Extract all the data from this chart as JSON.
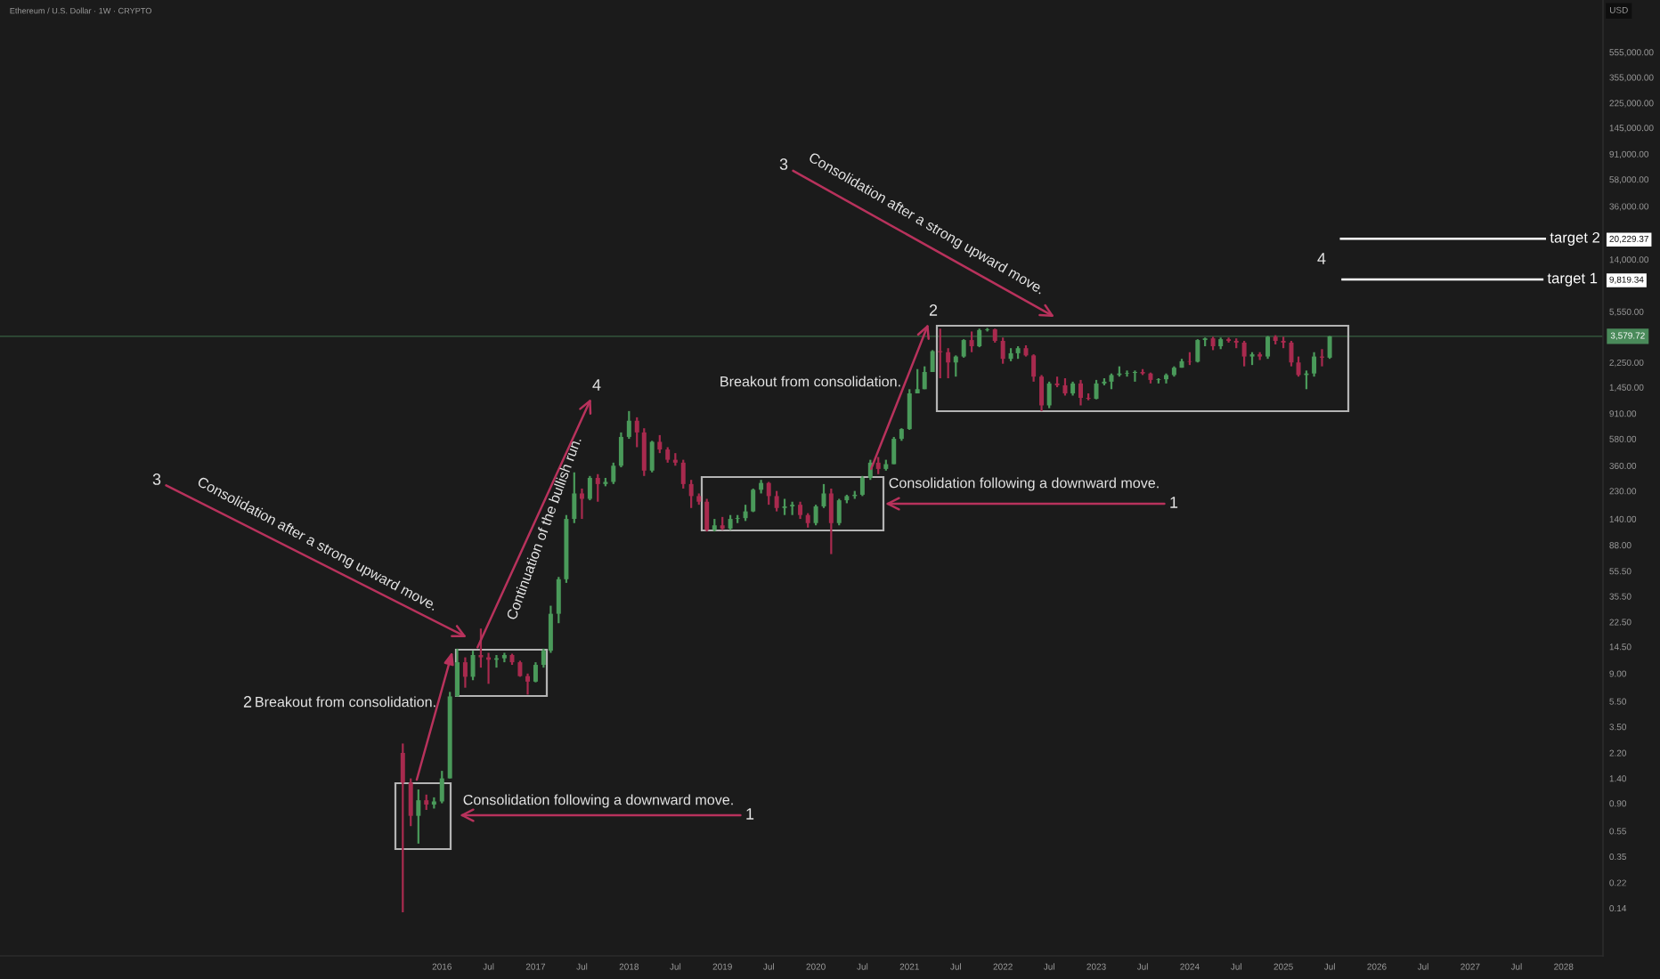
{
  "chart_data": {
    "type": "candlestick",
    "title": "Ethereum / U.S. Dollar · 1W · CRYPTO",
    "ylabel": "USD",
    "log": "y",
    "legend": "right",
    "x": [
      "2015-08",
      "2015-09",
      "2015-10",
      "2015-11",
      "2015-12",
      "2016-01",
      "2016-02",
      "2016-03",
      "2016-04",
      "2016-05",
      "2016-06",
      "2016-07",
      "2016-08",
      "2016-09",
      "2016-10",
      "2016-11",
      "2016-12",
      "2017-01",
      "2017-02",
      "2017-03",
      "2017-04",
      "2017-05",
      "2017-06",
      "2017-07",
      "2017-08",
      "2017-09",
      "2017-10",
      "2017-11",
      "2017-12",
      "2018-01",
      "2018-02",
      "2018-03",
      "2018-04",
      "2018-05",
      "2018-06",
      "2018-07",
      "2018-08",
      "2018-09",
      "2018-10",
      "2018-11",
      "2018-12",
      "2019-01",
      "2019-02",
      "2019-03",
      "2019-04",
      "2019-05",
      "2019-06",
      "2019-07",
      "2019-08",
      "2019-09",
      "2019-10",
      "2019-11",
      "2019-12",
      "2020-01",
      "2020-02",
      "2020-03",
      "2020-04",
      "2020-05",
      "2020-06",
      "2020-07",
      "2020-08",
      "2020-09",
      "2020-10",
      "2020-11",
      "2020-12",
      "2021-01",
      "2021-02",
      "2021-03",
      "2021-04",
      "2021-05",
      "2021-06",
      "2021-07",
      "2021-08",
      "2021-09",
      "2021-10",
      "2021-11",
      "2021-12",
      "2022-01",
      "2022-02",
      "2022-03",
      "2022-04",
      "2022-05",
      "2022-06",
      "2022-07",
      "2022-08",
      "2022-09",
      "2022-10",
      "2022-11",
      "2022-12",
      "2023-01",
      "2023-02",
      "2023-03",
      "2023-04",
      "2023-05",
      "2023-06",
      "2023-07",
      "2023-08",
      "2023-09",
      "2023-10",
      "2023-11",
      "2023-12",
      "2024-01",
      "2024-02",
      "2024-03",
      "2024-04",
      "2024-05",
      "2024-06",
      "2024-07",
      "2024-08",
      "2024-09",
      "2024-10",
      "2024-11",
      "2024-12",
      "2025-01",
      "2025-02",
      "2025-03",
      "2025-04",
      "2025-05",
      "2025-06",
      "2025-07"
    ],
    "ohlc": [
      [
        2.2,
        2.6,
        0.13,
        1.3
      ],
      [
        1.3,
        1.4,
        0.6,
        0.72
      ],
      [
        0.72,
        1.15,
        0.44,
        0.95
      ],
      [
        0.95,
        1.05,
        0.8,
        0.88
      ],
      [
        0.88,
        1.0,
        0.82,
        0.93
      ],
      [
        0.93,
        1.6,
        0.9,
        1.4
      ],
      [
        1.4,
        6.5,
        1.4,
        6.0
      ],
      [
        6.0,
        14,
        6.0,
        11
      ],
      [
        11,
        12,
        7,
        8.5
      ],
      [
        8.5,
        13.5,
        8,
        12.5
      ],
      [
        12.5,
        20,
        10,
        12
      ],
      [
        12,
        13,
        7.5,
        11.5
      ],
      [
        11.5,
        12.5,
        10,
        11.8
      ],
      [
        11.8,
        13,
        11,
        12.5
      ],
      [
        12.5,
        12.8,
        10.5,
        11
      ],
      [
        11,
        11.3,
        8.5,
        8.6
      ],
      [
        8.6,
        9,
        6.2,
        7.8
      ],
      [
        7.8,
        11,
        7.7,
        10.5
      ],
      [
        10.5,
        14,
        10,
        13.5
      ],
      [
        13.5,
        30,
        13,
        26
      ],
      [
        26,
        50,
        22,
        48
      ],
      [
        48,
        150,
        45,
        140
      ],
      [
        140,
        320,
        130,
        220
      ],
      [
        220,
        240,
        140,
        200
      ],
      [
        200,
        300,
        195,
        290
      ],
      [
        290,
        310,
        190,
        260
      ],
      [
        260,
        290,
        250,
        270
      ],
      [
        270,
        380,
        260,
        360
      ],
      [
        360,
        650,
        350,
        600
      ],
      [
        600,
        950,
        580,
        800
      ],
      [
        800,
        850,
        500,
        650
      ],
      [
        650,
        700,
        300,
        330
      ],
      [
        330,
        560,
        320,
        550
      ],
      [
        550,
        620,
        450,
        480
      ],
      [
        480,
        500,
        380,
        400
      ],
      [
        400,
        450,
        360,
        380
      ],
      [
        380,
        400,
        240,
        260
      ],
      [
        260,
        280,
        170,
        210
      ],
      [
        210,
        220,
        180,
        190
      ],
      [
        190,
        200,
        112,
        115
      ],
      [
        115,
        140,
        112,
        125
      ],
      [
        125,
        145,
        115,
        118
      ],
      [
        118,
        150,
        115,
        140
      ],
      [
        140,
        150,
        130,
        142
      ],
      [
        142,
        180,
        135,
        160
      ],
      [
        160,
        240,
        158,
        235
      ],
      [
        235,
        280,
        220,
        265
      ],
      [
        265,
        270,
        180,
        210
      ],
      [
        210,
        230,
        160,
        170
      ],
      [
        170,
        200,
        150,
        175
      ],
      [
        175,
        190,
        150,
        180
      ],
      [
        180,
        190,
        140,
        150
      ],
      [
        150,
        155,
        120,
        130
      ],
      [
        130,
        180,
        125,
        175
      ],
      [
        175,
        260,
        170,
        220
      ],
      [
        220,
        240,
        75,
        130
      ],
      [
        130,
        200,
        125,
        195
      ],
      [
        195,
        215,
        185,
        210
      ],
      [
        210,
        230,
        200,
        215
      ],
      [
        215,
        300,
        210,
        290
      ],
      [
        290,
        400,
        280,
        380
      ],
      [
        380,
        420,
        310,
        340
      ],
      [
        340,
        400,
        330,
        370
      ],
      [
        370,
        600,
        370,
        580
      ],
      [
        580,
        700,
        560,
        690
      ],
      [
        690,
        1400,
        680,
        1300
      ],
      [
        1300,
        2000,
        1300,
        1400
      ],
      [
        1400,
        2100,
        1400,
        1900
      ],
      [
        1900,
        2800,
        1900,
        2750
      ],
      [
        2750,
        4100,
        1700,
        2700
      ],
      [
        2700,
        2900,
        1700,
        2250
      ],
      [
        2250,
        2550,
        1750,
        2500
      ],
      [
        2500,
        3400,
        2450,
        3350
      ],
      [
        3350,
        3900,
        2700,
        3000
      ],
      [
        3000,
        4100,
        2950,
        4000
      ],
      [
        4000,
        4150,
        3900,
        4050
      ],
      [
        4050,
        4100,
        3200,
        3300
      ],
      [
        3300,
        3500,
        2200,
        2400
      ],
      [
        2400,
        2900,
        2300,
        2650
      ],
      [
        2650,
        3000,
        2400,
        2900
      ],
      [
        2900,
        3050,
        2500,
        2550
      ],
      [
        2550,
        2600,
        1600,
        1750
      ],
      [
        1750,
        1800,
        950,
        1050
      ],
      [
        1050,
        1600,
        1000,
        1550
      ],
      [
        1550,
        1750,
        1450,
        1500
      ],
      [
        1500,
        1700,
        1250,
        1300
      ],
      [
        1300,
        1600,
        1250,
        1550
      ],
      [
        1550,
        1650,
        1050,
        1200
      ],
      [
        1200,
        1300,
        1150,
        1180
      ],
      [
        1180,
        1650,
        1170,
        1550
      ],
      [
        1550,
        1700,
        1500,
        1600
      ],
      [
        1600,
        1850,
        1400,
        1800
      ],
      [
        1800,
        2100,
        1750,
        1850
      ],
      [
        1850,
        1950,
        1750,
        1870
      ],
      [
        1870,
        1950,
        1600,
        1900
      ],
      [
        1900,
        2000,
        1800,
        1850
      ],
      [
        1850,
        1880,
        1550,
        1650
      ],
      [
        1650,
        1700,
        1550,
        1670
      ],
      [
        1670,
        1850,
        1550,
        1800
      ],
      [
        1800,
        2100,
        1750,
        2050
      ],
      [
        2050,
        2400,
        2050,
        2300
      ],
      [
        2300,
        2700,
        2150,
        2280
      ],
      [
        2280,
        3400,
        2250,
        3350
      ],
      [
        3350,
        3500,
        3000,
        3450
      ],
      [
        3450,
        3550,
        2800,
        3000
      ],
      [
        3000,
        3500,
        2850,
        3400
      ],
      [
        3400,
        3500,
        3200,
        3300
      ],
      [
        3300,
        3450,
        2900,
        3200
      ],
      [
        3200,
        3300,
        2100,
        2500
      ],
      [
        2500,
        2700,
        2150,
        2600
      ],
      [
        2600,
        2700,
        2350,
        2500
      ],
      [
        2500,
        3600,
        2400,
        3550
      ],
      [
        3550,
        3650,
        3100,
        3300
      ],
      [
        3300,
        3550,
        2900,
        3200
      ],
      [
        3200,
        3300,
        2100,
        2250
      ],
      [
        2250,
        2500,
        1750,
        1800
      ],
      [
        1800,
        1950,
        1400,
        1850
      ],
      [
        1850,
        2700,
        1750,
        2500
      ],
      [
        2500,
        2850,
        2100,
        2450
      ],
      [
        2450,
        3600,
        2400,
        3579.72
      ]
    ],
    "colors": [
      "#a82a4e",
      "#a82a4e",
      "#4a9a5a",
      "#a82a4e",
      "#4a9a5a",
      "#4a9a5a",
      "#4a9a5a",
      "#4a9a5a",
      "#a82a4e",
      "#4a9a5a",
      "#a82a4e",
      "#a82a4e",
      "#4a9a5a",
      "#4a9a5a",
      "#a82a4e",
      "#a82a4e",
      "#a82a4e",
      "#4a9a5a",
      "#4a9a5a",
      "#4a9a5a",
      "#4a9a5a",
      "#4a9a5a",
      "#4a9a5a",
      "#a82a4e",
      "#4a9a5a",
      "#a82a4e",
      "#4a9a5a",
      "#4a9a5a",
      "#4a9a5a",
      "#4a9a5a",
      "#a82a4e",
      "#a82a4e",
      "#4a9a5a",
      "#a82a4e",
      "#a82a4e",
      "#a82a4e",
      "#a82a4e",
      "#a82a4e",
      "#a82a4e",
      "#a82a4e",
      "#4a9a5a",
      "#a82a4e",
      "#4a9a5a",
      "#4a9a5a",
      "#4a9a5a",
      "#4a9a5a",
      "#4a9a5a",
      "#a82a4e",
      "#a82a4e",
      "#4a9a5a",
      "#4a9a5a",
      "#a82a4e",
      "#a82a4e",
      "#4a9a5a",
      "#4a9a5a",
      "#a82a4e",
      "#4a9a5a",
      "#4a9a5a",
      "#4a9a5a",
      "#4a9a5a",
      "#4a9a5a",
      "#a82a4e",
      "#4a9a5a",
      "#4a9a5a",
      "#4a9a5a",
      "#4a9a5a",
      "#4a9a5a",
      "#4a9a5a",
      "#4a9a5a",
      "#a82a4e",
      "#a82a4e",
      "#4a9a5a",
      "#4a9a5a",
      "#a82a4e",
      "#4a9a5a",
      "#4a9a5a",
      "#a82a4e",
      "#a82a4e",
      "#4a9a5a",
      "#4a9a5a",
      "#a82a4e",
      "#a82a4e",
      "#a82a4e",
      "#4a9a5a",
      "#a82a4e",
      "#a82a4e",
      "#4a9a5a",
      "#a82a4e",
      "#a82a4e",
      "#4a9a5a",
      "#4a9a5a",
      "#4a9a5a",
      "#4a9a5a",
      "#4a9a5a",
      "#4a9a5a",
      "#a82a4e",
      "#a82a4e",
      "#4a9a5a",
      "#4a9a5a",
      "#4a9a5a",
      "#4a9a5a",
      "#a82a4e",
      "#4a9a5a",
      "#4a9a5a",
      "#a82a4e",
      "#4a9a5a",
      "#a82a4e",
      "#a82a4e",
      "#a82a4e",
      "#4a9a5a",
      "#a82a4e",
      "#4a9a5a",
      "#a82a4e",
      "#a82a4e",
      "#a82a4e",
      "#a82a4e",
      "#4a9a5a",
      "#4a9a5a",
      "#a82a4e",
      "#4a9a5a"
    ],
    "series": [
      {
        "type": "line",
        "name": "target 2",
        "color": "#ffffff",
        "x": [
          "2025-08-14",
          "2027-10-20"
        ],
        "values": [
          20229.37,
          20229.37
        ]
      },
      {
        "type": "line",
        "name": "target 1",
        "color": "#ffffff",
        "x": [
          "2025-08-20",
          "2027-10-10"
        ],
        "values": [
          9819.34,
          9819.34
        ]
      }
    ],
    "ref_lines": [
      {
        "axis": "y",
        "value": 3579.72,
        "label": "3,579.72",
        "color": "#4a8a5a"
      }
    ],
    "annotations": [
      "3",
      "Consolidation after a strong upward move.",
      "2",
      "Breakout from consolidation.",
      {
        "text": "4",
        "x": "2016-05-19",
        "y": 14.3
      },
      "Continuation of the bullish run.",
      "Consolidation following a downward move.",
      "1",
      "Breakout from consolidation.",
      {
        "text": "2",
        "x": "2020-08-04",
        "y": 340
      },
      "Consolidation following a downward move.",
      "1",
      "3",
      "Consolidation after a strong upward move.",
      "4"
    ],
    "xlim": [
      "2011-04-10",
      "2028-06-03"
    ],
    "xticks": [
      {
        "value": "2016-01-01",
        "label": "2016"
      },
      {
        "value": "2016-07-01",
        "label": "Jul"
      },
      {
        "value": "2017-01-01",
        "label": "2017"
      },
      {
        "value": "2017-07-01",
        "label": "Jul"
      },
      {
        "value": "2018-01-01",
        "label": "2018"
      },
      {
        "value": "2018-07-01",
        "label": "Jul"
      },
      {
        "value": "2019-01-01",
        "label": "2019"
      },
      {
        "value": "2019-07-01",
        "label": "Jul"
      },
      {
        "value": "2020-01-01",
        "label": "2020"
      },
      {
        "value": "2020-07-01",
        "label": "Jul"
      },
      {
        "value": "2021-01-01",
        "label": "2021"
      },
      {
        "value": "2021-07-01",
        "label": "Jul"
      },
      {
        "value": "2022-01-01",
        "label": "2022"
      },
      {
        "value": "2022-07-01",
        "label": "Jul"
      },
      {
        "value": "2023-01-01",
        "label": "2023"
      },
      {
        "value": "2023-07-01",
        "label": "Jul"
      },
      {
        "value": "2024-01-01",
        "label": "2024"
      },
      {
        "value": "2024-07-01",
        "label": "Jul"
      },
      {
        "value": "2025-01-01",
        "label": "2025"
      },
      {
        "value": "2025-07-01",
        "label": "Jul"
      },
      {
        "value": "2026-01-01",
        "label": "2026"
      },
      {
        "value": "2026-07-01",
        "label": "Jul"
      },
      {
        "value": "2027-01-01",
        "label": "2027"
      },
      {
        "value": "2027-07-01",
        "label": "Jul"
      },
      {
        "value": "2028-01-01",
        "label": "2028"
      }
    ],
    "ylim": [
      0.06,
      1400000
    ],
    "yticks": [
      {
        "value": 0.14,
        "label": "0.14"
      },
      {
        "value": 0.22,
        "label": "0.22"
      },
      {
        "value": 0.35,
        "label": "0.35"
      },
      {
        "value": 0.55,
        "label": "0.55"
      },
      {
        "value": 0.9,
        "label": "0.90"
      },
      {
        "value": 1.4,
        "label": "1.40"
      },
      {
        "value": 2.2,
        "label": "2.20"
      },
      {
        "value": 3.5,
        "label": "3.50"
      },
      {
        "value": 5.5,
        "label": "5.50"
      },
      {
        "value": 9,
        "label": "9.00"
      },
      {
        "value": 14.5,
        "label": "14.50"
      },
      {
        "value": 22.5,
        "label": "22.50"
      },
      {
        "value": 35.5,
        "label": "35.50"
      },
      {
        "value": 55.5,
        "label": "55.50"
      },
      {
        "value": 88,
        "label": "88.00"
      },
      {
        "value": 140,
        "label": "140.00"
      },
      {
        "value": 230,
        "label": "230.00"
      },
      {
        "value": 360,
        "label": "360.00"
      },
      {
        "value": 580,
        "label": "580.00"
      },
      {
        "value": 910,
        "label": "910.00"
      },
      {
        "value": 1450,
        "label": "1,450.00"
      },
      {
        "value": 2250,
        "label": "2,250.00"
      },
      {
        "value": 5550,
        "label": "5,550.00"
      },
      {
        "value": 9819.34,
        "label": "9,819.34"
      },
      {
        "value": 14000,
        "label": "14,000.00"
      },
      {
        "value": 20229.37,
        "label": "20,229.37"
      },
      {
        "value": 36000,
        "label": "36,000.00"
      },
      {
        "value": 58000,
        "label": "58,000.00"
      },
      {
        "value": 91000,
        "label": "91,000.00"
      },
      {
        "value": 145000,
        "label": "145,000.00"
      },
      {
        "value": 225000,
        "label": "225,000.00"
      },
      {
        "value": 355000,
        "label": "355,000.00"
      },
      {
        "value": 555000,
        "label": "555,000.00"
      }
    ]
  }
}
